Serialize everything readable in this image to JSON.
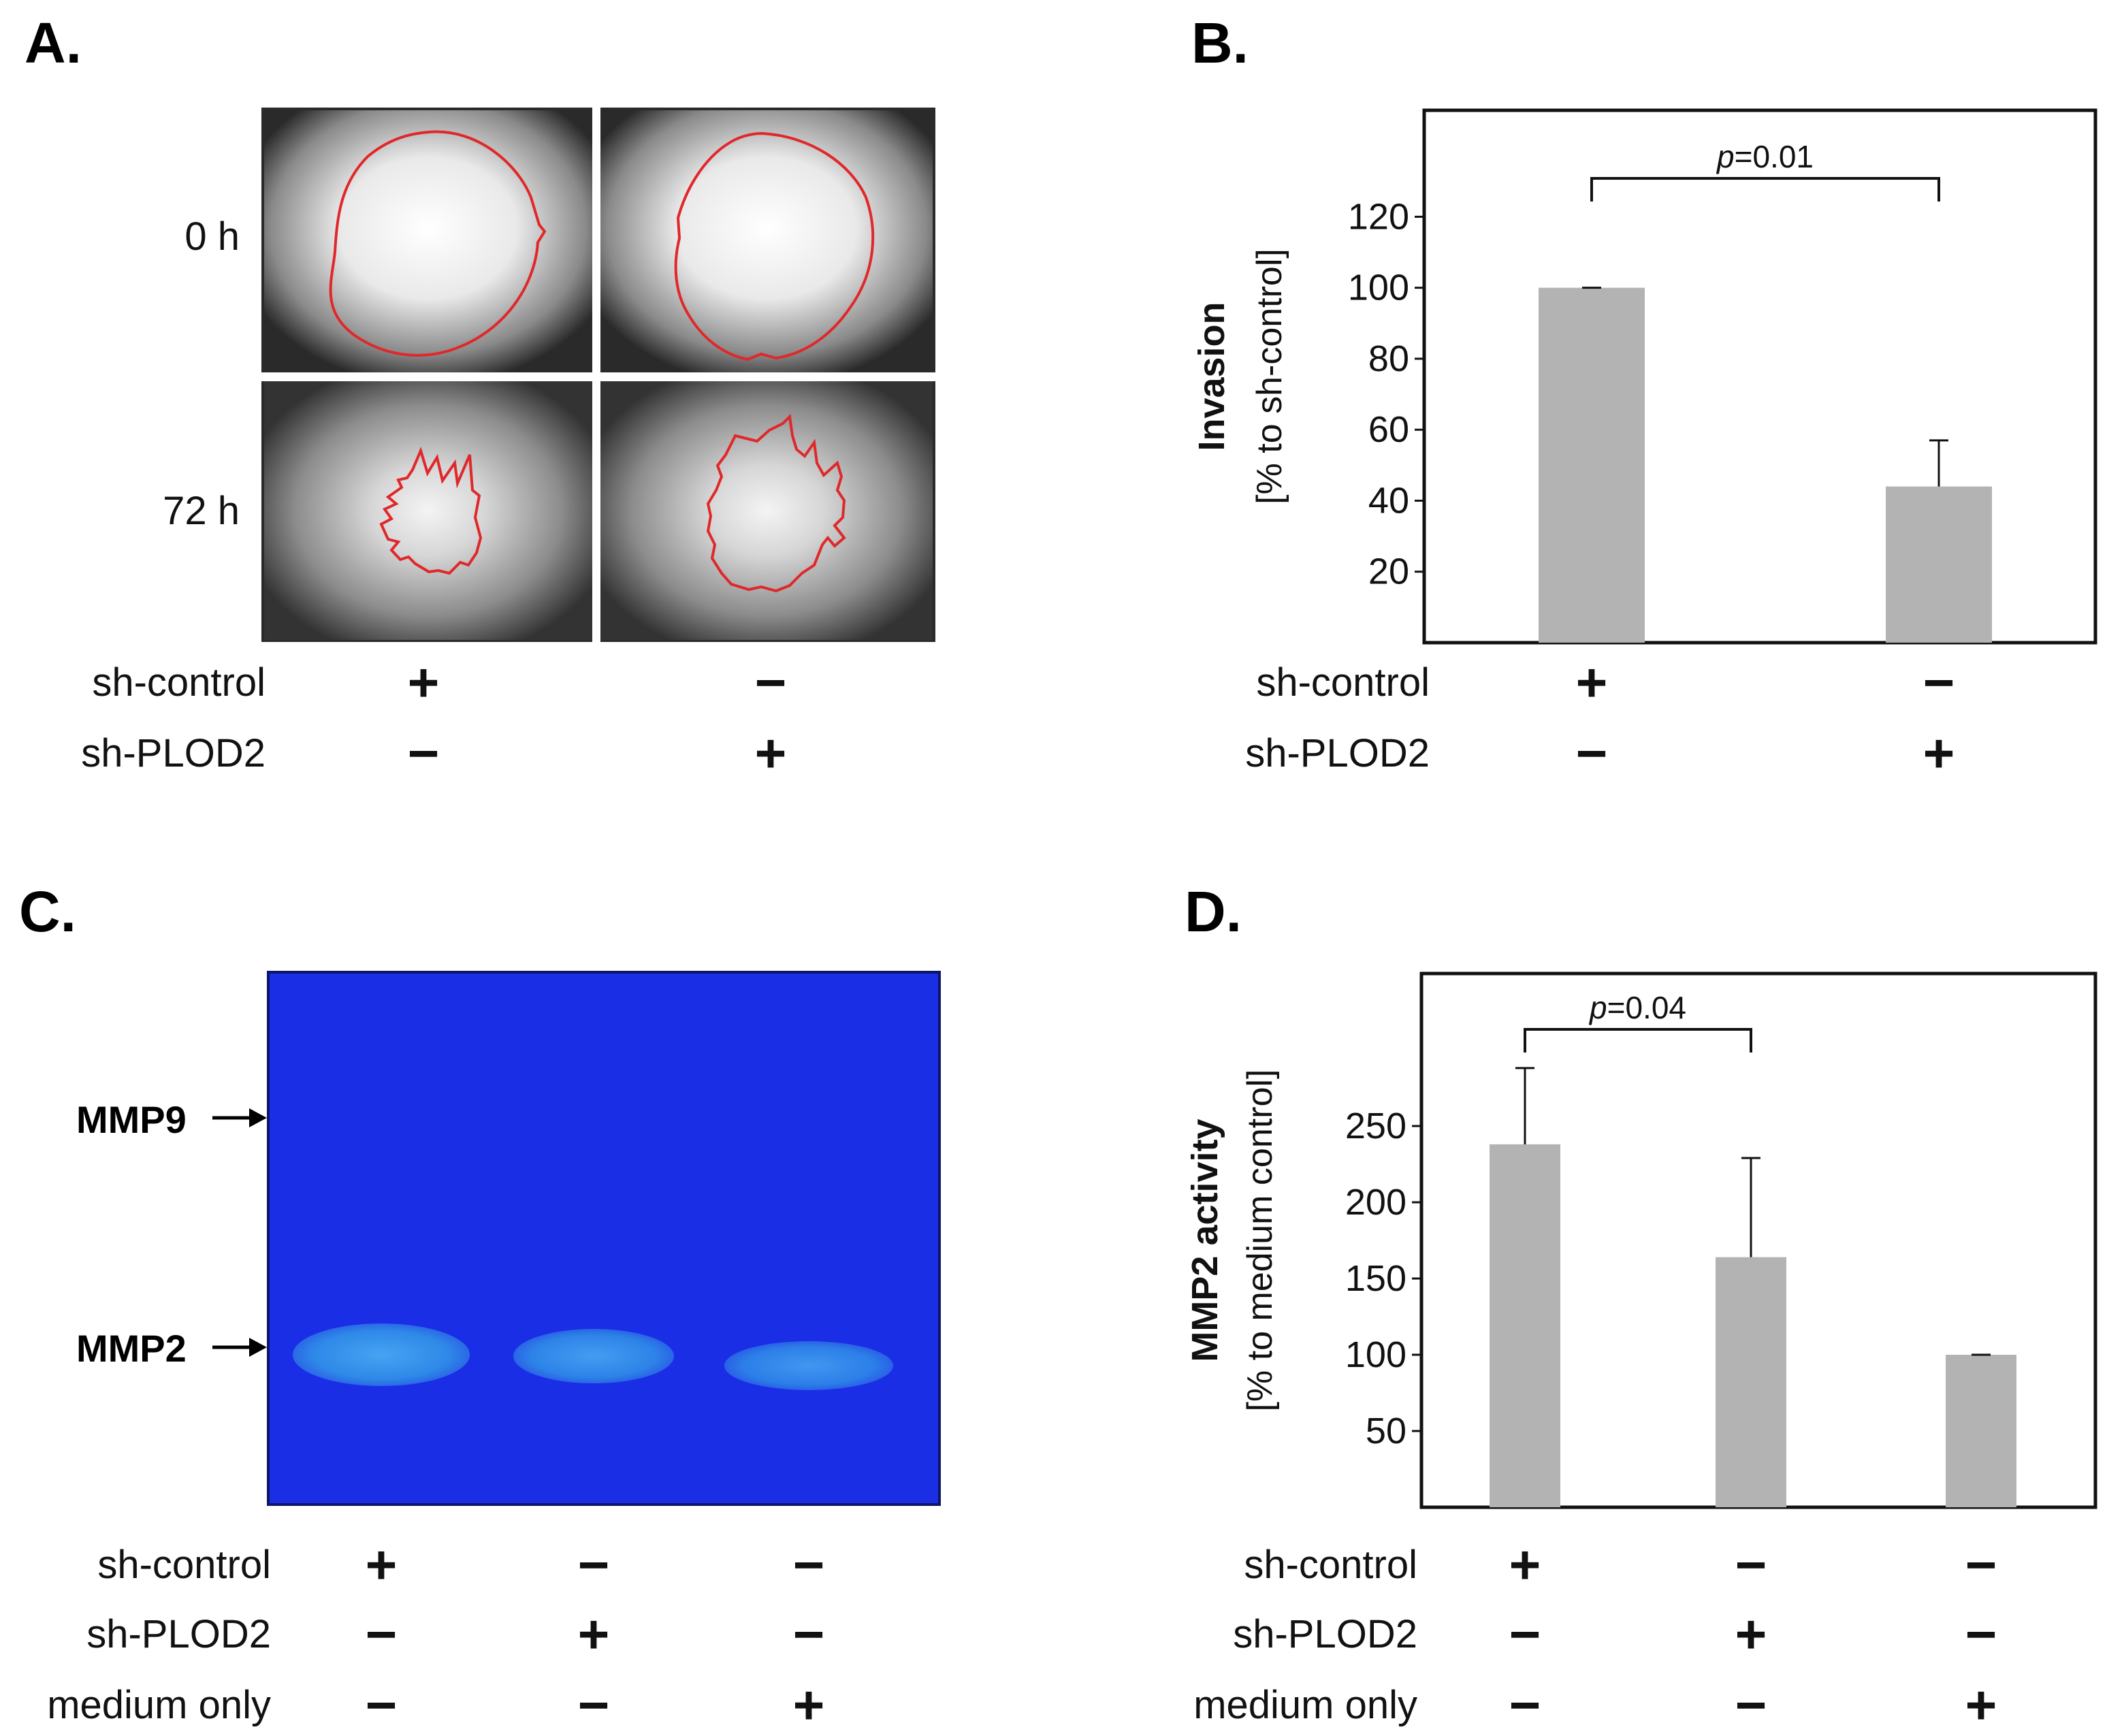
{
  "panels": {
    "a": {
      "letter": "A.",
      "row_labels": [
        "0 h",
        "72 h"
      ],
      "conditions": [
        {
          "label": "sh-control",
          "signs": [
            "+",
            "−"
          ]
        },
        {
          "label": "sh-PLOD2",
          "signs": [
            "−",
            "+"
          ]
        }
      ]
    },
    "b": {
      "letter": "B."
    },
    "c": {
      "letter": "C.",
      "bands": [
        "MMP9",
        "MMP2"
      ],
      "conditions": [
        {
          "label": "sh-control",
          "signs": [
            "+",
            "−",
            "−"
          ]
        },
        {
          "label": "sh-PLOD2",
          "signs": [
            "−",
            "+",
            "−"
          ]
        },
        {
          "label": "medium only",
          "signs": [
            "−",
            "−",
            "+"
          ]
        }
      ]
    },
    "d": {
      "letter": "D."
    }
  },
  "colors": {
    "bar": "#b3b3b3",
    "gel_blue": "#1a2ee6",
    "band": "#2f8de8",
    "outline_red": "#e0282a",
    "micrograph_dark": "#2a2a2a"
  },
  "chart_data": [
    {
      "type": "bar",
      "categories": [
        "sh-control",
        "sh-PLOD2"
      ],
      "values": [
        100,
        44
      ],
      "errors": [
        0,
        13
      ],
      "ylabel": "Invasion",
      "ylabel2": "[% to sh-control]",
      "yticks": [
        20,
        40,
        60,
        80,
        100,
        120
      ],
      "ylim": [
        0,
        150
      ],
      "annotation": {
        "prefix": "p",
        "text": "=0.01",
        "between": [
          0,
          1
        ]
      },
      "conditions": [
        {
          "label": "sh-control",
          "signs": [
            "+",
            "−"
          ]
        },
        {
          "label": "sh-PLOD2",
          "signs": [
            "−",
            "+"
          ]
        }
      ]
    },
    {
      "type": "bar",
      "categories": [
        "sh-control",
        "sh-PLOD2",
        "medium only"
      ],
      "values": [
        238,
        164,
        100
      ],
      "errors": [
        50,
        65,
        0
      ],
      "ylabel": "MMP2 activity",
      "ylabel2": "[% to medium control]",
      "yticks": [
        50,
        100,
        150,
        200,
        250
      ],
      "ylim": [
        0,
        350
      ],
      "annotation": {
        "prefix": "p",
        "text": "=0.04",
        "between": [
          0,
          1
        ]
      },
      "conditions": [
        {
          "label": "sh-control",
          "signs": [
            "+",
            "−",
            "−"
          ]
        },
        {
          "label": "sh-PLOD2",
          "signs": [
            "−",
            "+",
            "−"
          ]
        },
        {
          "label": "medium only",
          "signs": [
            "−",
            "−",
            "+"
          ]
        }
      ]
    }
  ]
}
